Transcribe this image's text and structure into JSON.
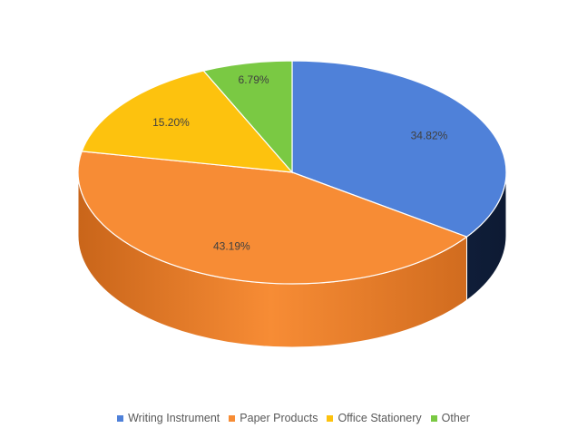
{
  "chart_data": {
    "type": "pie",
    "style": "3d",
    "title": "",
    "categories": [
      "Writing Instrument",
      "Paper Products",
      "Office Stationery",
      "Other"
    ],
    "values": [
      34.82,
      43.19,
      15.2,
      6.79
    ],
    "labels": [
      "34.82%",
      "43.19%",
      "15.20%",
      "6.79%"
    ],
    "colors": [
      "#4f81d9",
      "#f78c35",
      "#fdc20e",
      "#7ac943"
    ],
    "side_colors": [
      "#0d1a33",
      "#c9651a",
      "#b08400",
      "#4e8a26"
    ],
    "legend_position": "bottom"
  }
}
